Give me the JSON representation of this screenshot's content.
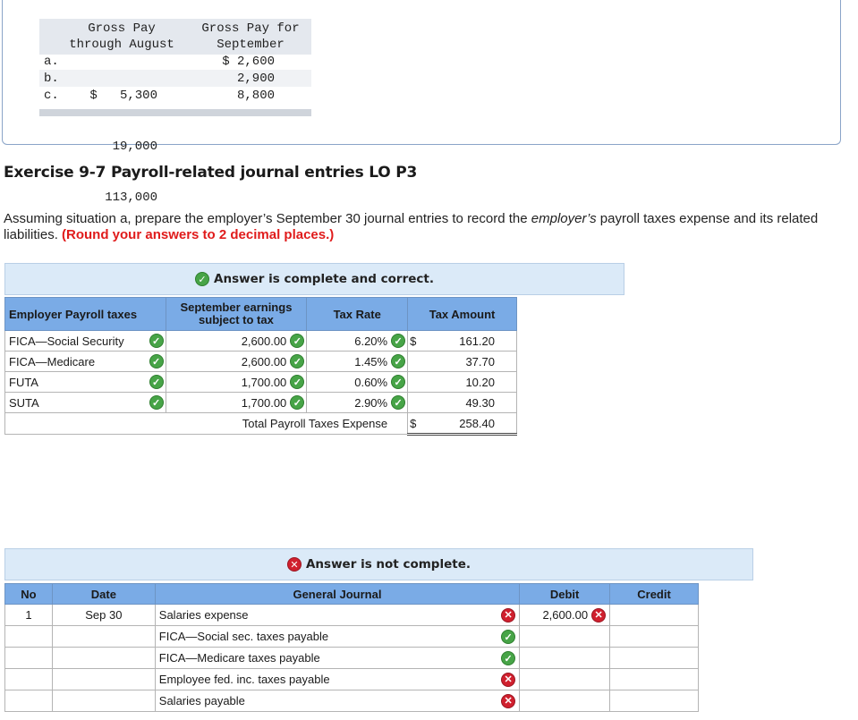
{
  "situations": {
    "headers": {
      "col1_line1": "Gross Pay",
      "col1_line2": "through August",
      "col2_line1": "Gross Pay for",
      "col2_line2": "September"
    },
    "rows": [
      {
        "label": "a.",
        "through_august": "$   5,300",
        "september": "$ 2,600"
      },
      {
        "label": "b.",
        "through_august": "19,000",
        "september": "2,900"
      },
      {
        "label": "c.",
        "through_august": "113,000",
        "september": "8,800"
      }
    ]
  },
  "exercise": {
    "title": "Exercise 9-7 Payroll-related journal entries LO P3",
    "instructions_pre": "Assuming situation a, prepare the employer’s September 30 journal entries to record the ",
    "instructions_em": "employer’s",
    "instructions_post": " payroll taxes expense and its related liabilities. ",
    "instructions_note": "(Round your answers to 2 decimal places.)"
  },
  "tax_section": {
    "banner": "Answer is complete and correct.",
    "headers": {
      "taxes": "Employer Payroll taxes",
      "earnings": "September earnings subject to tax",
      "rate": "Tax Rate",
      "amount": "Tax Amount"
    },
    "rows": [
      {
        "name": "FICA—Social Security",
        "earnings": "2,600.00",
        "rate": "6.20%",
        "currency": "$",
        "amount": "161.20"
      },
      {
        "name": "FICA—Medicare",
        "earnings": "2,600.00",
        "rate": "1.45%",
        "currency": "",
        "amount": "37.70"
      },
      {
        "name": "FUTA",
        "earnings": "1,700.00",
        "rate": "0.60%",
        "currency": "",
        "amount": "10.20"
      },
      {
        "name": "SUTA",
        "earnings": "1,700.00",
        "rate": "2.90%",
        "currency": "",
        "amount": "49.30"
      }
    ],
    "total_label": "Total Payroll Taxes Expense",
    "total_currency": "$",
    "total_amount": "258.40"
  },
  "journal_section": {
    "banner": "Answer is not complete.",
    "headers": {
      "no": "No",
      "date": "Date",
      "journal": "General Journal",
      "debit": "Debit",
      "credit": "Credit"
    },
    "rows": [
      {
        "no": "1",
        "date": "Sep 30",
        "account": "Salaries expense",
        "status": "incorrect",
        "debit": "2,600.00",
        "debit_status": "incorrect",
        "credit": ""
      },
      {
        "no": "",
        "date": "",
        "account": "FICA—Social sec. taxes payable",
        "status": "correct",
        "debit": "",
        "debit_status": "",
        "credit": ""
      },
      {
        "no": "",
        "date": "",
        "account": "FICA—Medicare taxes payable",
        "status": "correct",
        "debit": "",
        "debit_status": "",
        "credit": ""
      },
      {
        "no": "",
        "date": "",
        "account": "Employee fed. inc. taxes payable",
        "status": "incorrect",
        "debit": "",
        "debit_status": "",
        "credit": ""
      },
      {
        "no": "",
        "date": "",
        "account": "Salaries payable",
        "status": "incorrect",
        "debit": "",
        "debit_status": "",
        "credit": ""
      }
    ]
  },
  "colors": {
    "table_header": "#7aabe6",
    "banner_bg": "#dbeaf8",
    "correct": "#47a447",
    "incorrect": "#d0202e",
    "note_red": "#e01b1b"
  },
  "icons": {
    "correct": "check-circle-icon",
    "incorrect": "x-circle-icon"
  }
}
